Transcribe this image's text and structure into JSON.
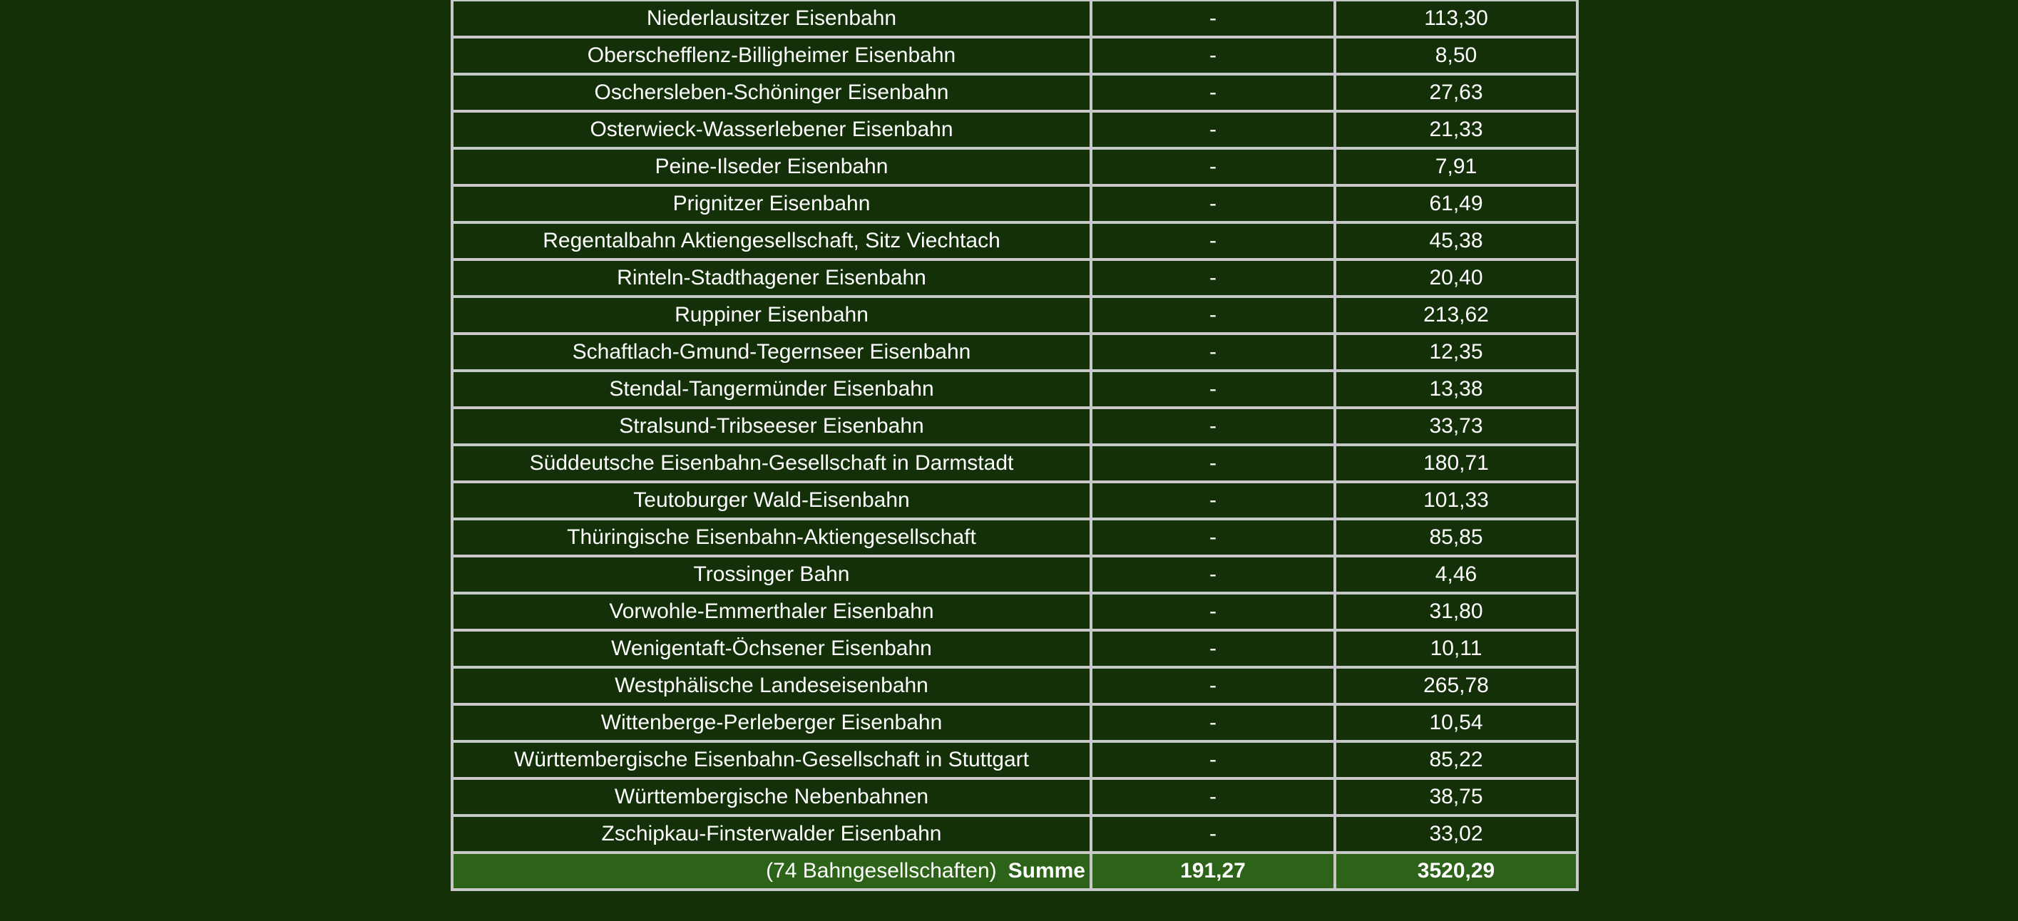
{
  "rows": [
    {
      "name": "Niederlausitzer Eisenbahn",
      "col2": "-",
      "col3": "113,30"
    },
    {
      "name": "Oberschefflenz-Billigheimer Eisenbahn",
      "col2": "-",
      "col3": "8,50"
    },
    {
      "name": "Oschersleben-Schöninger Eisenbahn",
      "col2": "-",
      "col3": "27,63"
    },
    {
      "name": "Osterwieck-Wasserlebener Eisenbahn",
      "col2": "-",
      "col3": "21,33"
    },
    {
      "name": "Peine-Ilseder Eisenbahn",
      "col2": "-",
      "col3": "7,91"
    },
    {
      "name": "Prignitzer Eisenbahn",
      "col2": "-",
      "col3": "61,49"
    },
    {
      "name": "Regentalbahn Aktiengesellschaft, Sitz Viechtach",
      "col2": "-",
      "col3": "45,38"
    },
    {
      "name": "Rinteln-Stadthagener Eisenbahn",
      "col2": "-",
      "col3": "20,40"
    },
    {
      "name": "Ruppiner Eisenbahn",
      "col2": "-",
      "col3": "213,62"
    },
    {
      "name": "Schaftlach-Gmund-Tegernseer Eisenbahn",
      "col2": "-",
      "col3": "12,35"
    },
    {
      "name": "Stendal-Tangermünder Eisenbahn",
      "col2": "-",
      "col3": "13,38"
    },
    {
      "name": "Stralsund-Tribseeser Eisenbahn",
      "col2": "-",
      "col3": "33,73"
    },
    {
      "name": "Süddeutsche Eisenbahn-Gesellschaft in Darmstadt",
      "col2": "-",
      "col3": "180,71"
    },
    {
      "name": "Teutoburger Wald-Eisenbahn",
      "col2": "-",
      "col3": "101,33"
    },
    {
      "name": "Thüringische Eisenbahn-Aktiengesellschaft",
      "col2": "-",
      "col3": "85,85"
    },
    {
      "name": "Trossinger Bahn",
      "col2": "-",
      "col3": "4,46"
    },
    {
      "name": "Vorwohle-Emmerthaler Eisenbahn",
      "col2": "-",
      "col3": "31,80"
    },
    {
      "name": "Wenigentaft-Öchsener Eisenbahn",
      "col2": "-",
      "col3": "10,11"
    },
    {
      "name": "Westphälische Landeseisenbahn",
      "col2": "-",
      "col3": "265,78"
    },
    {
      "name": "Wittenberge-Perleberger Eisenbahn",
      "col2": "-",
      "col3": "10,54"
    },
    {
      "name": "Württembergische Eisenbahn-Gesellschaft in Stuttgart",
      "col2": "-",
      "col3": "85,22"
    },
    {
      "name": "Württembergische Nebenbahnen",
      "col2": "-",
      "col3": "38,75"
    },
    {
      "name": "Zschipkau-Finsterwalder Eisenbahn",
      "col2": "-",
      "col3": "33,02"
    }
  ],
  "summary": {
    "count_label": "(74 Bahngesellschaften)",
    "label": "Summe",
    "col2": "191,27",
    "col3": "3520,29"
  },
  "colors": {
    "background": "#133008",
    "summary_background": "#2c6318",
    "border": "#c8c8c8"
  }
}
